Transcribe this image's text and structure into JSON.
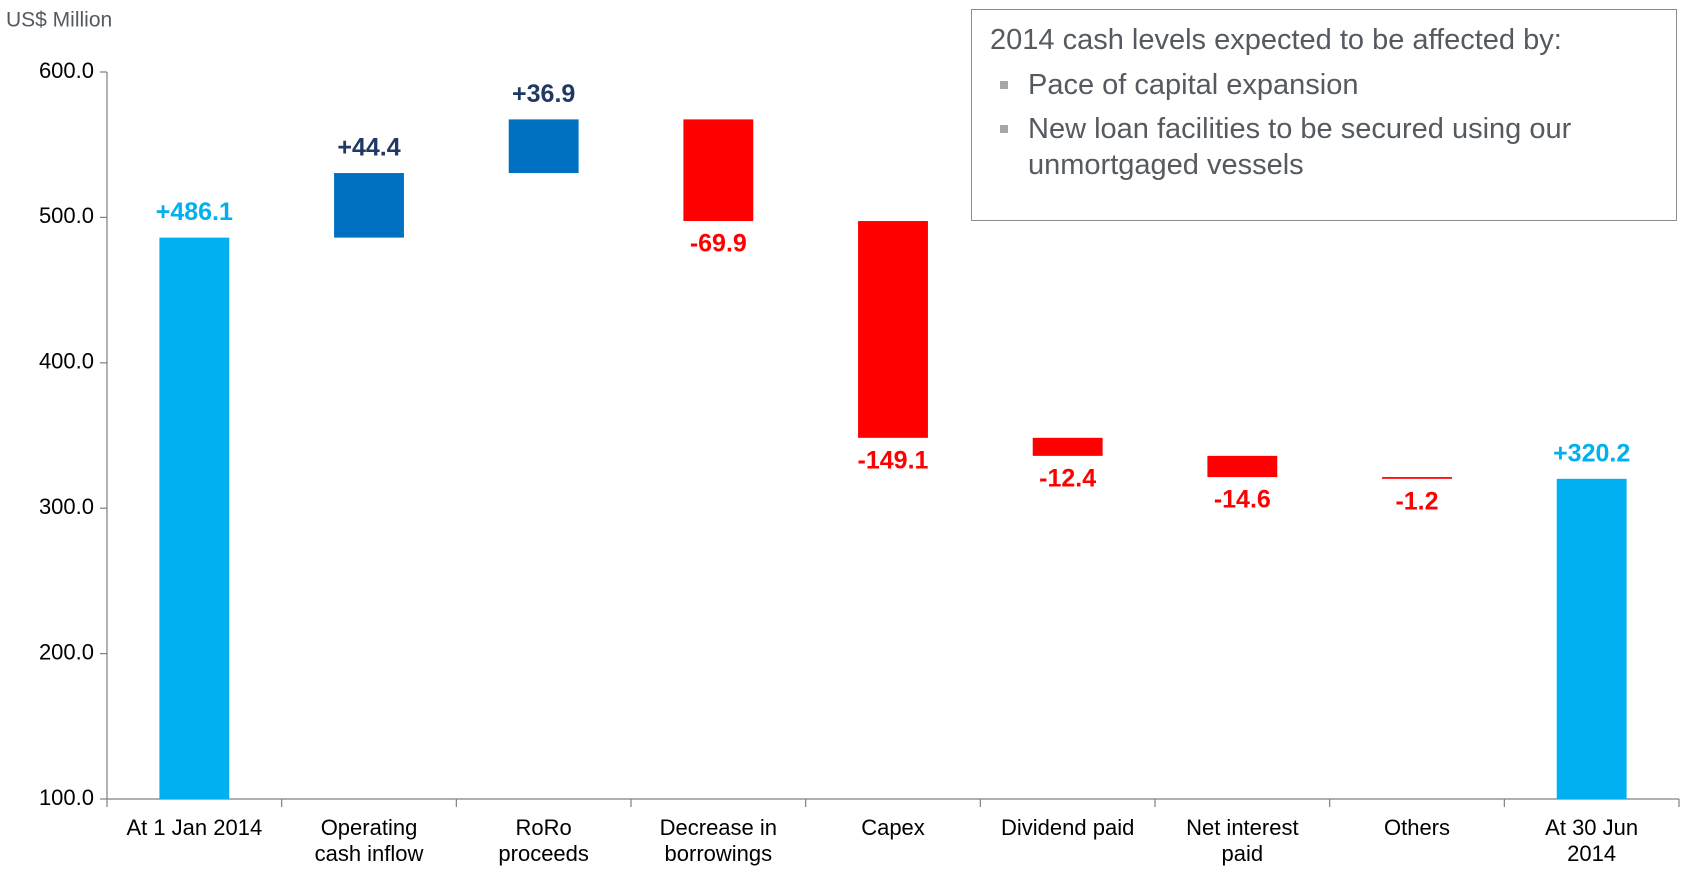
{
  "chart_data": {
    "type": "waterfall",
    "y_axis_label": "US$ Million",
    "categories": [
      "At 1 Jan 2014",
      "Operating\ncash inflow",
      "RoRo\nproceeds",
      "Decrease in\nborrowings",
      "Capex",
      "Dividend paid",
      "Net interest\npaid",
      "Others",
      "At 30 Jun\n2014"
    ],
    "values": [
      486.1,
      44.4,
      36.9,
      -69.9,
      -149.1,
      -12.4,
      -14.6,
      -1.2,
      320.2
    ],
    "value_labels": [
      "+486.1",
      "+44.4",
      "+36.9",
      "-69.9",
      "-149.1",
      "-12.4",
      "-14.6",
      "-1.2",
      "+320.2"
    ],
    "measures": [
      "total",
      "relative",
      "relative",
      "relative",
      "relative",
      "relative",
      "relative",
      "relative",
      "total"
    ],
    "colors": {
      "total": "#00b0f0",
      "increase": "#0070c0",
      "decrease": "#ff0000"
    },
    "label_colors": {
      "total": "#00b0f0",
      "increase": "#1f3864",
      "decrease": "#ff0000"
    },
    "ylim": [
      100,
      600
    ],
    "yticks": [
      {
        "value": 100,
        "label": "100.0"
      },
      {
        "value": 200,
        "label": "200.0"
      },
      {
        "value": 300,
        "label": "300.0"
      },
      {
        "value": 400,
        "label": "400.0"
      },
      {
        "value": 500,
        "label": "500.0"
      },
      {
        "value": 600,
        "label": "600.0"
      }
    ],
    "grid": false,
    "annotation": {
      "title": "2014 cash levels expected to be affected by:",
      "bullets": [
        "Pace of capital expansion",
        "New loan facilities to be secured using our unmortgaged vessels"
      ]
    }
  }
}
